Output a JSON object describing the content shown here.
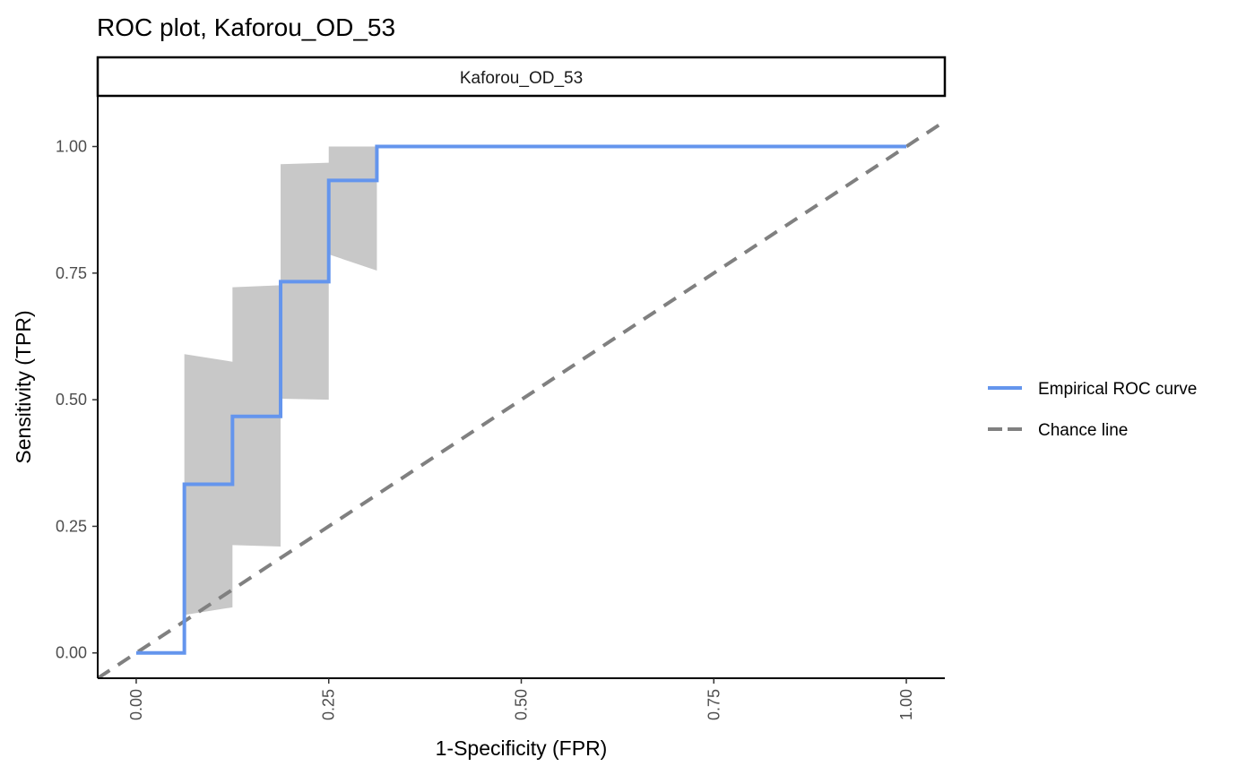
{
  "chart_data": {
    "type": "line",
    "title": "ROC plot, Kaforou_OD_53",
    "facet_label": "Kaforou_OD_53",
    "xlabel": "1-Specificity (FPR)",
    "ylabel": "Sensitivity (TPR)",
    "xlim": [
      -0.05,
      1.05
    ],
    "ylim": [
      -0.05,
      1.1
    ],
    "x_ticks": [
      0,
      0.25,
      0.5,
      0.75,
      1
    ],
    "x_tick_labels": [
      "0.00",
      "0.25",
      "0.50",
      "0.75",
      "1.00"
    ],
    "y_ticks": [
      0,
      0.25,
      0.5,
      0.75,
      1
    ],
    "y_tick_labels": [
      "0.00",
      "0.25",
      "0.50",
      "0.75",
      "1.00"
    ],
    "grid": false,
    "legend_position": "right",
    "series": [
      {
        "name": "Empirical ROC curve",
        "color": "#6495ED",
        "style": "solid",
        "x": [
          0,
          0.0625,
          0.0625,
          0.125,
          0.125,
          0.1875,
          0.1875,
          0.25,
          0.25,
          0.3125,
          0.3125,
          1.0
        ],
        "y": [
          0,
          0,
          0.333,
          0.333,
          0.467,
          0.467,
          0.733,
          0.733,
          0.933,
          0.933,
          1.0,
          1.0
        ]
      },
      {
        "name": "Chance line",
        "color": "#808080",
        "style": "dashed",
        "x": [
          -0.05,
          1.05
        ],
        "y": [
          -0.05,
          1.05
        ]
      }
    ],
    "confidence_band": {
      "color": "#C8C8C8",
      "x": [
        0.0625,
        0.125,
        0.125,
        0.1875,
        0.1875,
        0.25,
        0.25,
        0.3125
      ],
      "upper": [
        0.59,
        0.575,
        0.722,
        0.726,
        0.965,
        0.968,
        1.0,
        1.0
      ],
      "lower": [
        0.075,
        0.09,
        0.213,
        0.21,
        0.502,
        0.5,
        0.787,
        0.755
      ]
    }
  }
}
